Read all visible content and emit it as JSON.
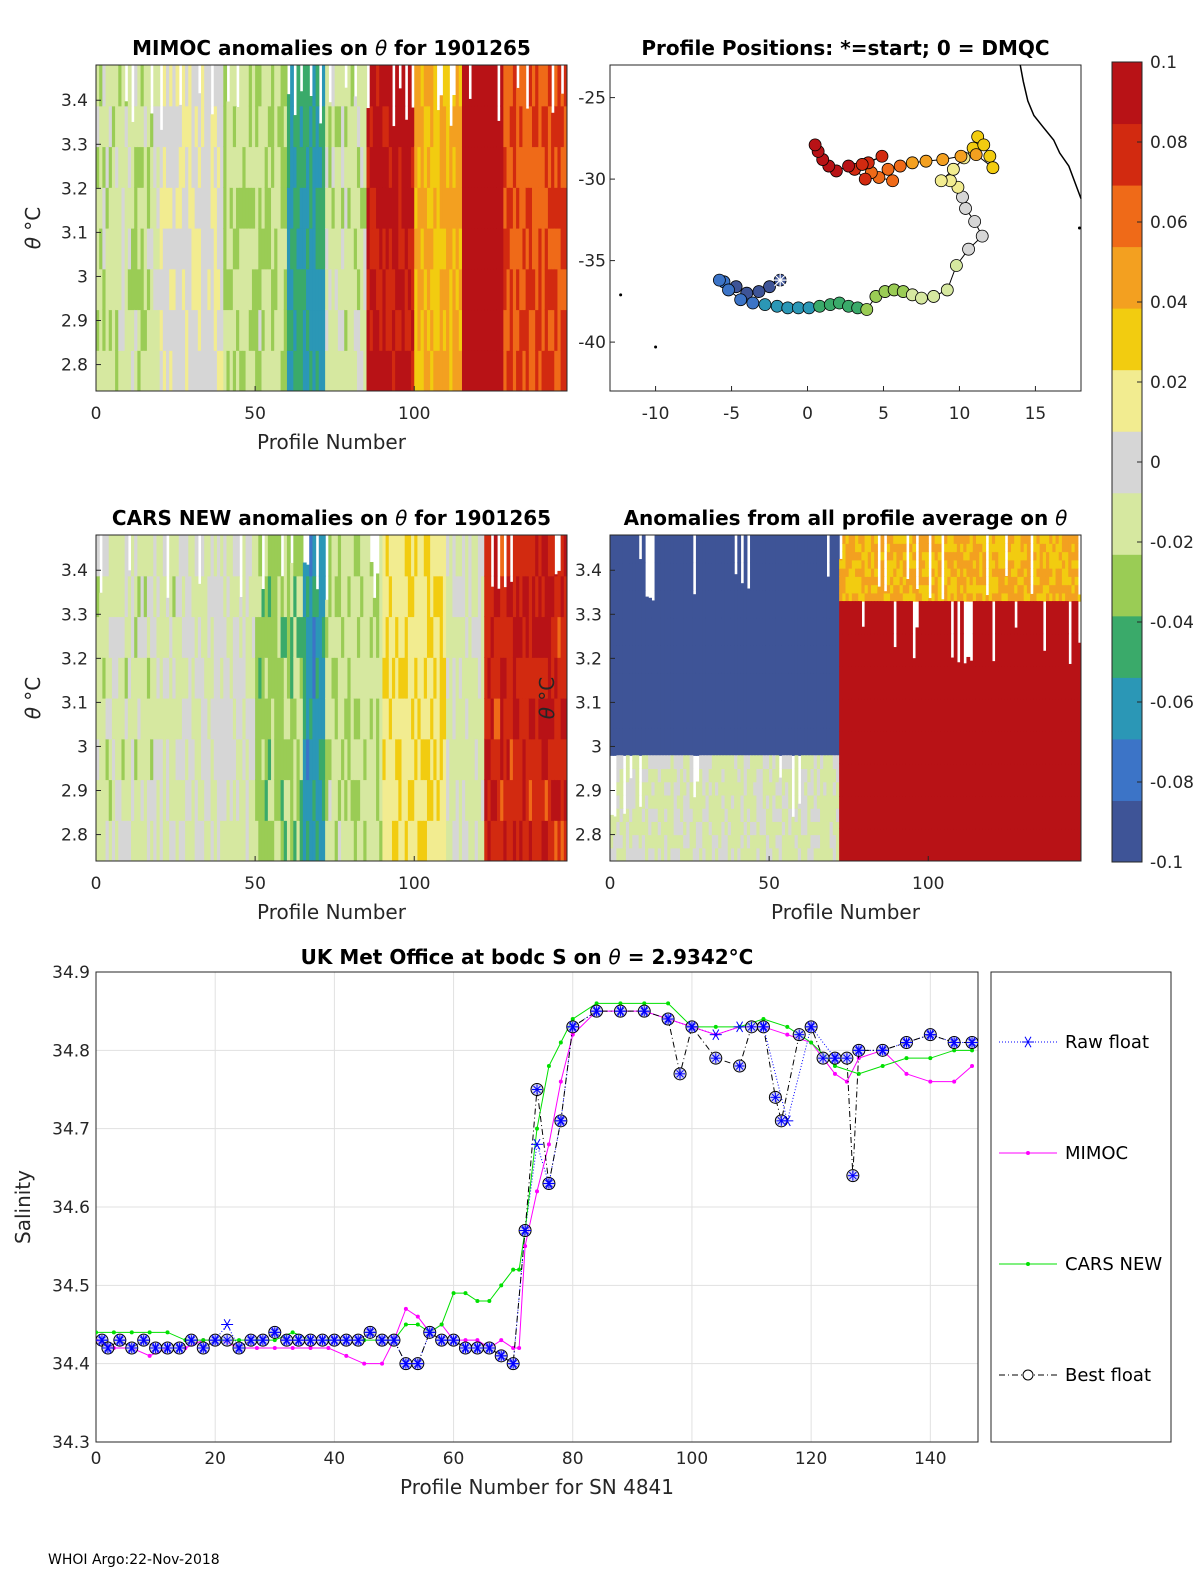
{
  "footer": "WHOI Argo:22-Nov-2018",
  "chart_data": [
    {
      "id": "mimoc",
      "type": "heatmap",
      "title_prefix": "MIMOC anomalies on ",
      "title_symbol": "θ",
      "title_suffix": "  for 1901265",
      "xlabel": "Profile Number",
      "ylabel_symbol": "θ",
      "ylabel_unit": "°C",
      "xlim": [
        0,
        148
      ],
      "ylim": [
        2.74,
        3.48
      ],
      "xticks": [
        0,
        50,
        100
      ],
      "yticks": [
        2.8,
        2.9,
        3,
        3.1,
        3.2,
        3.3,
        3.4
      ],
      "ytick_labels": [
        "2.8",
        "2.9",
        "3",
        "3.1",
        "3.2",
        "3.3",
        "3.4"
      ],
      "segments": [
        {
          "x": [
            0,
            20
          ],
          "level": -0.015
        },
        {
          "x": [
            20,
            40
          ],
          "level": 0.005
        },
        {
          "x": [
            40,
            60
          ],
          "level": -0.02
        },
        {
          "x": [
            60,
            72
          ],
          "level": -0.055
        },
        {
          "x": [
            72,
            85
          ],
          "level": -0.015
        },
        {
          "x": [
            85,
            100
          ],
          "level": 0.09
        },
        {
          "x": [
            100,
            115
          ],
          "level": 0.04
        },
        {
          "x": [
            115,
            128
          ],
          "level": 0.1
        },
        {
          "x": [
            128,
            148
          ],
          "level": 0.07
        }
      ]
    },
    {
      "id": "positions",
      "type": "scatter",
      "title": "Profile Positions: *=start; 0 = DMQC",
      "xlim": [
        -13,
        18
      ],
      "ylim": [
        -43,
        -23
      ],
      "xticks": [
        -10,
        -5,
        0,
        5,
        10,
        15
      ],
      "xtick_labels": [
        "-10",
        "-5",
        "0",
        "5",
        "10",
        "15"
      ],
      "yticks": [
        -25,
        -30,
        -35,
        -40
      ],
      "ytick_labels": [
        "-25",
        "-30",
        "-35",
        "-40"
      ],
      "start": {
        "lon": -1.8,
        "lat": -36.2
      },
      "track": [
        [
          -1.8,
          -36.2
        ],
        [
          -2.5,
          -36.6
        ],
        [
          -3.2,
          -36.9
        ],
        [
          -4.0,
          -37.0
        ],
        [
          -4.7,
          -36.6
        ],
        [
          -5.5,
          -36.3
        ],
        [
          -5.8,
          -36.2
        ],
        [
          -5.2,
          -36.8
        ],
        [
          -4.4,
          -37.4
        ],
        [
          -3.6,
          -37.6
        ],
        [
          -2.8,
          -37.7
        ],
        [
          -2.0,
          -37.8
        ],
        [
          -1.3,
          -37.9
        ],
        [
          -0.6,
          -37.9
        ],
        [
          0.1,
          -37.9
        ],
        [
          0.8,
          -37.8
        ],
        [
          1.5,
          -37.7
        ],
        [
          2.1,
          -37.6
        ],
        [
          2.7,
          -37.8
        ],
        [
          3.3,
          -37.9
        ],
        [
          3.9,
          -38.0
        ],
        [
          4.5,
          -37.2
        ],
        [
          5.1,
          -36.9
        ],
        [
          5.7,
          -36.8
        ],
        [
          6.3,
          -36.9
        ],
        [
          6.9,
          -37.1
        ],
        [
          7.5,
          -37.3
        ],
        [
          8.3,
          -37.2
        ],
        [
          9.2,
          -36.8
        ],
        [
          9.8,
          -35.3
        ],
        [
          10.6,
          -34.3
        ],
        [
          11.5,
          -33.5
        ],
        [
          11.0,
          -32.6
        ],
        [
          10.4,
          -31.8
        ],
        [
          10.2,
          -31.1
        ],
        [
          9.9,
          -30.5
        ],
        [
          9.4,
          -30.1
        ],
        [
          8.8,
          -30.1
        ],
        [
          9.6,
          -29.4
        ],
        [
          10.3,
          -28.7
        ],
        [
          10.9,
          -28.1
        ],
        [
          11.2,
          -27.4
        ],
        [
          11.6,
          -27.9
        ],
        [
          12.0,
          -28.6
        ],
        [
          12.2,
          -29.3
        ],
        [
          11.1,
          -28.5
        ],
        [
          10.1,
          -28.6
        ],
        [
          8.9,
          -28.8
        ],
        [
          7.8,
          -28.9
        ],
        [
          6.9,
          -29.0
        ],
        [
          6.1,
          -29.2
        ],
        [
          5.3,
          -29.4
        ],
        [
          5.6,
          -30.1
        ],
        [
          4.7,
          -29.9
        ],
        [
          4.2,
          -29.6
        ],
        [
          3.8,
          -30.0
        ],
        [
          3.1,
          -29.4
        ],
        [
          4.0,
          -29.0
        ],
        [
          4.9,
          -28.6
        ],
        [
          3.6,
          -29.1
        ],
        [
          2.7,
          -29.2
        ],
        [
          1.9,
          -29.5
        ],
        [
          1.4,
          -29.2
        ],
        [
          1.0,
          -28.8
        ],
        [
          0.7,
          -28.3
        ],
        [
          0.5,
          -27.9
        ]
      ],
      "coast": [
        [
          14.0,
          -23.0
        ],
        [
          14.2,
          -24.0
        ],
        [
          14.5,
          -25.2
        ],
        [
          14.9,
          -26.1
        ],
        [
          15.5,
          -26.8
        ],
        [
          16.2,
          -27.6
        ],
        [
          16.6,
          -28.4
        ],
        [
          17.2,
          -29.2
        ],
        [
          17.6,
          -30.2
        ],
        [
          18.0,
          -31.2
        ]
      ],
      "islands": [
        [
          -12.3,
          -37.1
        ],
        [
          -10.0,
          -40.3
        ],
        [
          17.9,
          -33.0
        ]
      ]
    },
    {
      "id": "cars",
      "type": "heatmap",
      "title_prefix": "CARS NEW anomalies on ",
      "title_symbol": "θ",
      "title_suffix": " for 1901265",
      "xlabel": "Profile Number",
      "ylabel_symbol": "θ",
      "ylabel_unit": "°C",
      "xlim": [
        0,
        148
      ],
      "ylim": [
        2.74,
        3.48
      ],
      "xticks": [
        0,
        50,
        100
      ],
      "yticks": [
        2.8,
        2.9,
        3,
        3.1,
        3.2,
        3.3,
        3.4
      ],
      "ytick_labels": [
        "2.8",
        "2.9",
        "3",
        "3.1",
        "3.2",
        "3.3",
        "3.4"
      ],
      "segments": [
        {
          "x": [
            0,
            25
          ],
          "level": -0.012
        },
        {
          "x": [
            25,
            50
          ],
          "level": -0.005
        },
        {
          "x": [
            50,
            65
          ],
          "level": -0.03
        },
        {
          "x": [
            65,
            72
          ],
          "level": -0.06
        },
        {
          "x": [
            72,
            90
          ],
          "level": -0.02
        },
        {
          "x": [
            90,
            110
          ],
          "level": 0.02
        },
        {
          "x": [
            110,
            122
          ],
          "level": -0.01
        },
        {
          "x": [
            122,
            148
          ],
          "level": 0.08
        }
      ]
    },
    {
      "id": "allprofile",
      "type": "heatmap",
      "title_prefix": "Anomalies from all profile average on ",
      "title_symbol": "θ",
      "title_suffix": "",
      "xlabel": "Profile Number",
      "ylabel_symbol": "θ",
      "ylabel_unit": "°C",
      "xlim": [
        0,
        148
      ],
      "ylim": [
        2.74,
        3.48
      ],
      "xticks": [
        0,
        50,
        100
      ],
      "yticks": [
        2.8,
        2.9,
        3,
        3.1,
        3.2,
        3.3,
        3.4
      ],
      "ytick_labels": [
        "2.8",
        "2.9",
        "3",
        "3.1",
        "3.2",
        "3.3",
        "3.4"
      ],
      "segments": [
        {
          "x": [
            0,
            72
          ],
          "y": [
            2.98,
            3.48
          ],
          "level": -0.1
        },
        {
          "x": [
            0,
            72
          ],
          "y": [
            2.74,
            2.98
          ],
          "level": -0.01
        },
        {
          "x": [
            72,
            148
          ],
          "y": [
            3.33,
            3.48
          ],
          "level": 0.04
        },
        {
          "x": [
            72,
            148
          ],
          "y": [
            2.74,
            3.33
          ],
          "level": 0.1
        }
      ]
    },
    {
      "id": "colorbar",
      "type": "colorbar",
      "range": [
        -0.1,
        0.1
      ],
      "ticks": [
        0.1,
        0.08,
        0.06,
        0.04,
        0.02,
        0,
        -0.02,
        -0.04,
        -0.06,
        -0.08,
        -0.1
      ],
      "tick_labels": [
        "0.1",
        "0.08",
        "0.06",
        "0.04",
        "0.02",
        "0",
        "-0.02",
        "-0.04",
        "-0.06",
        "-0.08",
        "-0.1"
      ],
      "colors": [
        "#3e5497",
        "#3c74c7",
        "#2b97b6",
        "#3aaa6a",
        "#9acc55",
        "#d6e8a0",
        "#d6d6d6",
        "#f2ec90",
        "#f2cc10",
        "#f3a020",
        "#ef6a18",
        "#d22a10",
        "#b81216"
      ]
    },
    {
      "id": "salinity",
      "type": "line",
      "title_prefix": "UK Met Office at bodc S on ",
      "title_symbol": "θ",
      "title_value": " = 2.9342",
      "title_unit": "°C",
      "xlabel": "Profile Number for SN 4841",
      "ylabel": "Salinity",
      "xlim": [
        0,
        148
      ],
      "ylim": [
        34.3,
        34.9
      ],
      "xticks": [
        0,
        20,
        40,
        60,
        80,
        100,
        120,
        140
      ],
      "xtick_labels": [
        "0",
        "20",
        "40",
        "60",
        "80",
        "100",
        "120",
        "140"
      ],
      "yticks": [
        34.3,
        34.4,
        34.5,
        34.6,
        34.7,
        34.8,
        34.9
      ],
      "ytick_labels": [
        "34.3",
        "34.4",
        "34.5",
        "34.6",
        "34.7",
        "34.8",
        "34.9"
      ],
      "grid": true,
      "legend": [
        "Raw float",
        "MIMOC",
        "CARS NEW",
        "Best float"
      ],
      "series": [
        {
          "name": "Raw float",
          "color": "#0000ff",
          "x": [
            1,
            2,
            4,
            6,
            8,
            10,
            12,
            14,
            16,
            18,
            20,
            22,
            24,
            26,
            28,
            30,
            32,
            34,
            36,
            38,
            40,
            42,
            44,
            46,
            48,
            50,
            52,
            54,
            56,
            58,
            60,
            62,
            64,
            66,
            68,
            70,
            72,
            74,
            76,
            78,
            80,
            84,
            88,
            92,
            96,
            100,
            104,
            108,
            112,
            116,
            120,
            124,
            128,
            132,
            136,
            140,
            144,
            147
          ],
          "y": [
            34.43,
            34.42,
            34.43,
            34.42,
            34.43,
            34.42,
            34.42,
            34.42,
            34.43,
            34.42,
            34.43,
            34.45,
            34.42,
            34.43,
            34.43,
            34.44,
            34.43,
            34.43,
            34.43,
            34.43,
            34.43,
            34.43,
            34.43,
            34.44,
            34.43,
            34.43,
            34.4,
            34.4,
            34.44,
            34.43,
            34.43,
            34.42,
            34.42,
            34.42,
            34.41,
            34.4,
            34.57,
            34.68,
            34.63,
            34.71,
            34.83,
            34.85,
            34.85,
            34.85,
            34.84,
            34.83,
            34.82,
            34.83,
            34.83,
            34.71,
            34.83,
            34.79,
            34.8,
            34.8,
            34.81,
            34.82,
            34.81,
            34.81
          ]
        },
        {
          "name": "MIMOC",
          "color": "#ff00ff",
          "x": [
            0,
            3,
            6,
            9,
            12,
            15,
            18,
            21,
            24,
            27,
            30,
            33,
            36,
            39,
            42,
            45,
            48,
            50,
            52,
            54,
            56,
            58,
            60,
            62,
            64,
            66,
            68,
            70,
            71,
            72,
            74,
            76,
            78,
            80,
            84,
            88,
            92,
            96,
            100,
            104,
            108,
            112,
            116,
            120,
            124,
            126,
            128,
            132,
            136,
            140,
            144,
            147
          ],
          "y": [
            34.43,
            34.42,
            34.42,
            34.41,
            34.42,
            34.42,
            34.43,
            34.43,
            34.42,
            34.42,
            34.42,
            34.42,
            34.42,
            34.42,
            34.41,
            34.4,
            34.4,
            34.43,
            34.47,
            34.46,
            34.44,
            34.45,
            34.43,
            34.43,
            34.43,
            34.42,
            34.43,
            34.42,
            34.42,
            34.55,
            34.62,
            34.68,
            34.76,
            34.82,
            34.85,
            34.85,
            34.85,
            34.84,
            34.83,
            34.82,
            34.83,
            34.83,
            34.82,
            34.81,
            34.77,
            34.76,
            34.79,
            34.8,
            34.77,
            34.76,
            34.76,
            34.78
          ]
        },
        {
          "name": "CARS NEW",
          "color": "#00e000",
          "x": [
            0,
            3,
            6,
            9,
            12,
            15,
            18,
            21,
            24,
            27,
            30,
            33,
            36,
            39,
            42,
            45,
            48,
            50,
            52,
            54,
            56,
            58,
            60,
            62,
            64,
            66,
            68,
            70,
            71,
            72,
            74,
            76,
            78,
            80,
            84,
            88,
            92,
            96,
            100,
            104,
            108,
            112,
            116,
            120,
            124,
            128,
            132,
            136,
            140,
            144,
            147
          ],
          "y": [
            34.44,
            34.44,
            34.44,
            34.44,
            34.44,
            34.43,
            34.43,
            34.43,
            34.43,
            34.43,
            34.43,
            34.44,
            34.43,
            34.43,
            34.43,
            34.43,
            34.43,
            34.43,
            34.45,
            34.45,
            34.44,
            34.45,
            34.49,
            34.49,
            34.48,
            34.48,
            34.5,
            34.52,
            34.52,
            34.57,
            34.7,
            34.78,
            34.81,
            34.84,
            34.86,
            34.86,
            34.86,
            34.86,
            34.83,
            34.83,
            34.83,
            34.84,
            34.83,
            34.81,
            34.78,
            34.77,
            34.78,
            34.79,
            34.79,
            34.8,
            34.8
          ]
        },
        {
          "name": "Best float",
          "color": "#000000",
          "x": [
            1,
            2,
            4,
            6,
            8,
            10,
            12,
            14,
            16,
            18,
            20,
            22,
            24,
            26,
            28,
            30,
            32,
            34,
            36,
            38,
            40,
            42,
            44,
            46,
            48,
            50,
            52,
            54,
            56,
            58,
            60,
            62,
            64,
            66,
            68,
            70,
            72,
            74,
            76,
            78,
            80,
            84,
            88,
            92,
            96,
            98,
            100,
            104,
            108,
            110,
            112,
            114,
            115,
            118,
            120,
            122,
            124,
            126,
            127,
            128,
            132,
            136,
            140,
            144,
            147
          ],
          "y": [
            34.43,
            34.42,
            34.43,
            34.42,
            34.43,
            34.42,
            34.42,
            34.42,
            34.43,
            34.42,
            34.43,
            34.43,
            34.42,
            34.43,
            34.43,
            34.44,
            34.43,
            34.43,
            34.43,
            34.43,
            34.43,
            34.43,
            34.43,
            34.44,
            34.43,
            34.43,
            34.4,
            34.4,
            34.44,
            34.43,
            34.43,
            34.42,
            34.42,
            34.42,
            34.41,
            34.4,
            34.57,
            34.75,
            34.63,
            34.71,
            34.83,
            34.85,
            34.85,
            34.85,
            34.84,
            34.77,
            34.83,
            34.79,
            34.78,
            34.83,
            34.83,
            34.74,
            34.71,
            34.82,
            34.83,
            34.79,
            34.79,
            34.79,
            34.64,
            34.8,
            34.8,
            34.81,
            34.82,
            34.81,
            34.81
          ]
        }
      ]
    }
  ]
}
